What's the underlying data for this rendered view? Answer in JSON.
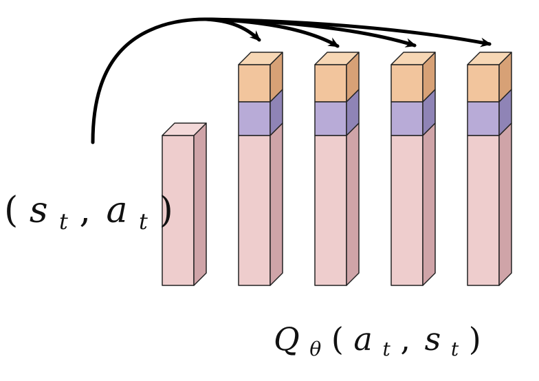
{
  "input_label": "(s_t, a_t)",
  "output_label": "Q_θ(a_t, s_t)",
  "input_label_parts": {
    "open": "(",
    "s": "s",
    "s_sub": "t",
    "comma": ",",
    "a": "a",
    "a_sub": "t",
    "close": ")"
  },
  "output_label_parts": {
    "q": "Q",
    "q_sub": "θ",
    "open": "(",
    "a": "a",
    "a_sub": "t",
    "comma": ",",
    "s": "s",
    "s_sub": "t",
    "close": ")"
  },
  "colors": {
    "base_front": "#eecdcd",
    "base_side": "#cfa4a8",
    "base_top": "#f3d9d9",
    "middle_front": "#b8abd7",
    "middle_side": "#8f84b6",
    "middle_top": "#c7bde2",
    "top_front": "#f2c59d",
    "top_side": "#d7a176",
    "top_top": "#f7d7b5",
    "stroke": "#222222",
    "arrow": "#000000"
  },
  "bars": [
    {
      "name": "input-bar",
      "segments": [
        "base"
      ]
    },
    {
      "name": "output-bar-1",
      "segments": [
        "base",
        "middle",
        "top"
      ]
    },
    {
      "name": "output-bar-2",
      "segments": [
        "base",
        "middle",
        "top"
      ]
    },
    {
      "name": "output-bar-3",
      "segments": [
        "base",
        "middle",
        "top"
      ]
    },
    {
      "name": "output-bar-4",
      "segments": [
        "base",
        "middle",
        "top"
      ]
    }
  ],
  "icons": {
    "arrow_icon": "arrow-icon"
  }
}
